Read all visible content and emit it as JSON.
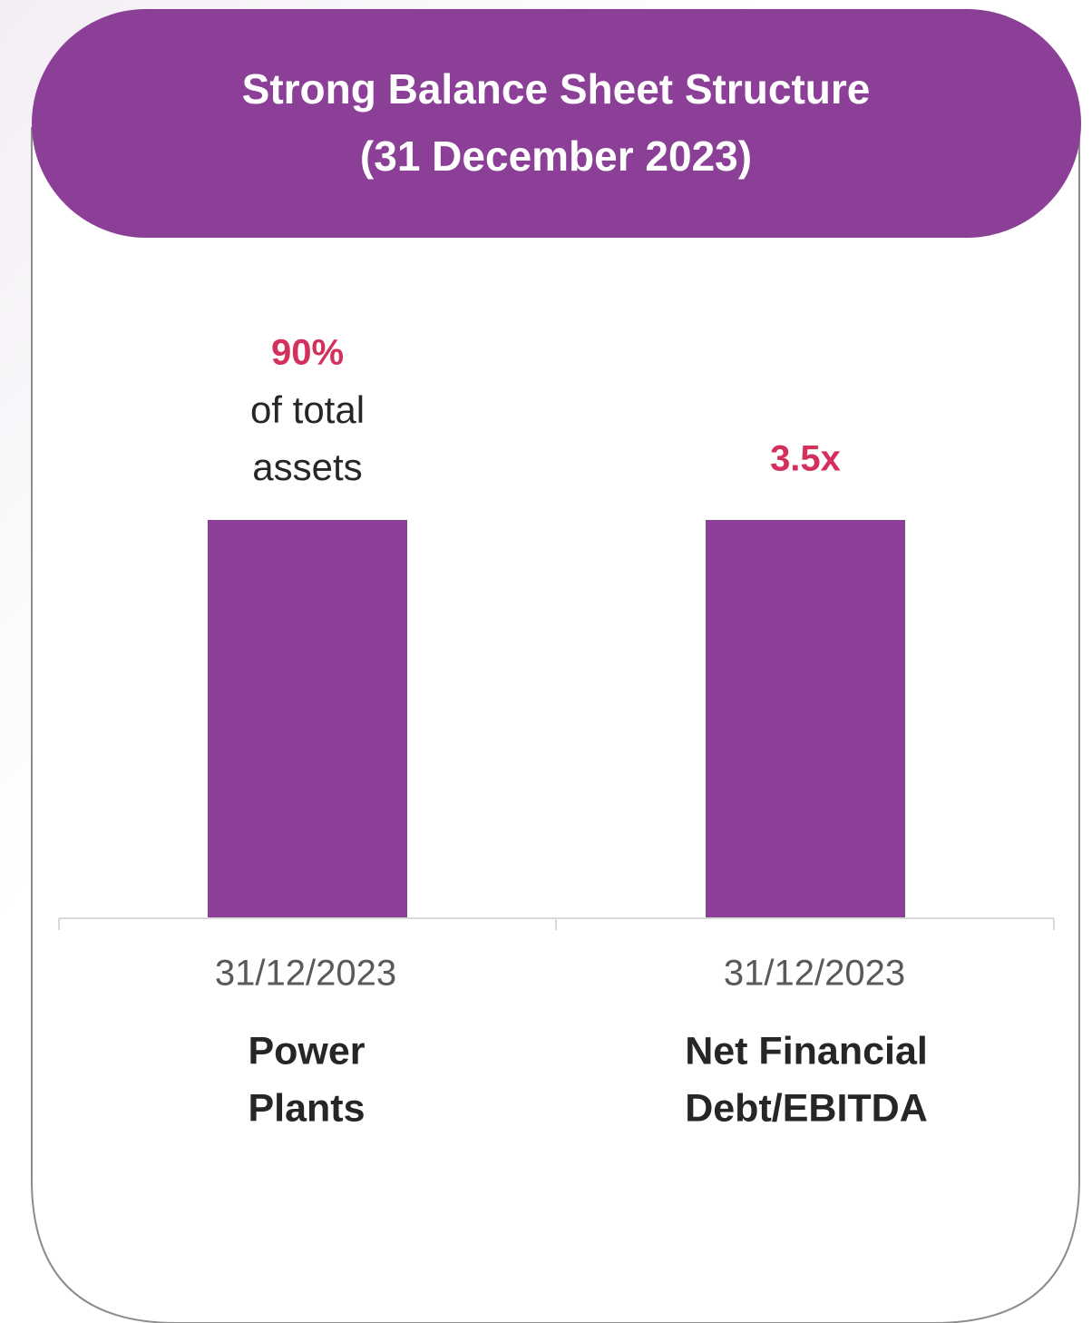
{
  "header": {
    "title": "Strong Balance Sheet Structure",
    "subtitle": "(31 December 2023)"
  },
  "items": [
    {
      "value": "90%",
      "note": [
        "of total",
        "assets"
      ],
      "date": "31/12/2023",
      "label": [
        "Power",
        "Plants"
      ]
    },
    {
      "value": "3.5x",
      "date": "31/12/2023",
      "label": [
        "Net Financial",
        "Debt/EBITDA"
      ]
    }
  ]
}
